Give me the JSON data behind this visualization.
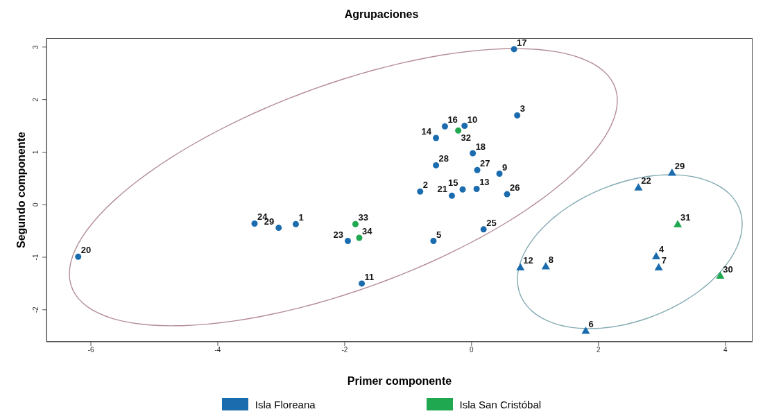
{
  "chart_data": {
    "type": "scatter",
    "title": "Agrupaciones",
    "xlabel": "Primer componente",
    "ylabel": "Segundo componente",
    "xlim": [
      -6.7,
      4.43
    ],
    "ylim": [
      -2.61,
      3.17
    ],
    "xticks": [
      -6,
      -4,
      -2,
      0,
      2,
      4
    ],
    "yticks": [
      -2,
      -1,
      0,
      1,
      2,
      3
    ],
    "grid": false,
    "legend": "bottom",
    "series": [
      {
        "name": "Isla Floreana",
        "color": "#1b6cae",
        "marker": "circle",
        "x": [
          0.67,
          0.72,
          -0.42,
          -0.11,
          -0.56,
          0.02,
          -0.56,
          0.09,
          0.44,
          -0.81,
          -0.31,
          -0.14,
          0.08,
          0.56,
          -3.42,
          -3.04,
          -2.77,
          -1.95,
          -6.2,
          -1.73,
          -0.6,
          0.19
        ],
        "values": [
          2.96,
          1.7,
          1.49,
          1.5,
          1.27,
          0.98,
          0.75,
          0.66,
          0.59,
          0.25,
          0.17,
          0.29,
          0.3,
          0.2,
          -0.36,
          -0.44,
          -0.37,
          -0.69,
          -0.99,
          -1.5,
          -0.69,
          -0.47
        ]
      },
      {
        "name": "Isla San Cristóbal",
        "color": "#1fa84f",
        "marker": "circle",
        "x": [
          -0.21,
          -1.83,
          -1.77
        ],
        "values": [
          1.41,
          -0.37,
          -0.63
        ]
      },
      {
        "color": "#1b6cae",
        "marker": "triangle",
        "x": [
          3.16,
          2.63,
          2.91,
          2.95,
          0.77,
          1.17,
          1.8
        ],
        "values": [
          0.61,
          0.33,
          -0.98,
          -1.19,
          -1.19,
          -1.17,
          -2.4
        ]
      },
      {
        "color": "#1fa84f",
        "marker": "triangle",
        "x": [
          3.25,
          3.92
        ],
        "values": [
          -0.37,
          -1.35
        ]
      }
    ],
    "annotations": [
      {
        "text": "17",
        "x": 0.67,
        "y": 2.96
      },
      {
        "text": "3",
        "x": 0.72,
        "y": 1.7
      },
      {
        "text": "16",
        "x": -0.42,
        "y": 1.49
      },
      {
        "text": "10",
        "x": -0.11,
        "y": 1.5
      },
      {
        "text": "14",
        "x": -0.56,
        "y": 1.27
      },
      {
        "text": "18",
        "x": 0.02,
        "y": 0.98
      },
      {
        "text": "28",
        "x": -0.56,
        "y": 0.75
      },
      {
        "text": "27",
        "x": 0.09,
        "y": 0.66
      },
      {
        "text": "9",
        "x": 0.44,
        "y": 0.59
      },
      {
        "text": "2",
        "x": -0.81,
        "y": 0.25
      },
      {
        "text": "21",
        "x": -0.31,
        "y": 0.17
      },
      {
        "text": "15",
        "x": -0.14,
        "y": 0.29
      },
      {
        "text": "13",
        "x": 0.08,
        "y": 0.3
      },
      {
        "text": "26",
        "x": 0.56,
        "y": 0.2
      },
      {
        "text": "24",
        "x": -3.42,
        "y": -0.36
      },
      {
        "text": "29",
        "x": -3.04,
        "y": -0.44
      },
      {
        "text": "1",
        "x": -2.77,
        "y": -0.37
      },
      {
        "text": "23",
        "x": -1.95,
        "y": -0.69
      },
      {
        "text": "20",
        "x": -6.2,
        "y": -0.99
      },
      {
        "text": "11",
        "x": -1.73,
        "y": -1.5
      },
      {
        "text": "5",
        "x": -0.6,
        "y": -0.69
      },
      {
        "text": "25",
        "x": 0.19,
        "y": -0.47
      },
      {
        "text": "32",
        "x": -0.21,
        "y": 1.41
      },
      {
        "text": "33",
        "x": -1.83,
        "y": -0.37
      },
      {
        "text": "34",
        "x": -1.77,
        "y": -0.63
      },
      {
        "text": "29",
        "x": 3.16,
        "y": 0.61
      },
      {
        "text": "22",
        "x": 2.63,
        "y": 0.33
      },
      {
        "text": "4",
        "x": 2.91,
        "y": -0.98
      },
      {
        "text": "7",
        "x": 2.95,
        "y": -1.19
      },
      {
        "text": "12",
        "x": 0.77,
        "y": -1.19
      },
      {
        "text": "8",
        "x": 1.17,
        "y": -1.17
      },
      {
        "text": "6",
        "x": 1.8,
        "y": -2.4
      },
      {
        "text": "31",
        "x": 3.25,
        "y": -0.37
      },
      {
        "text": "30",
        "x": 3.92,
        "y": -1.35
      }
    ]
  }
}
